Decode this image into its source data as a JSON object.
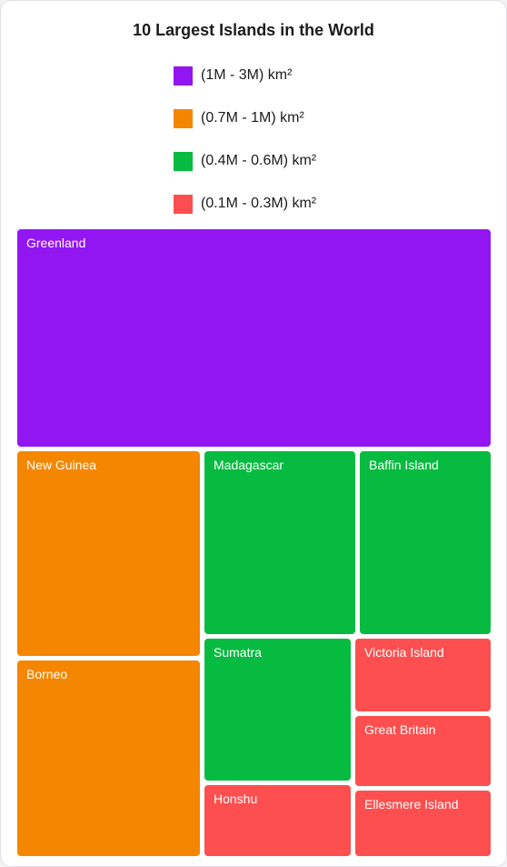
{
  "chart_data": {
    "type": "treemap",
    "title": "10 Largest Islands in the World",
    "legend": [
      {
        "label": "(1M - 3M) km²",
        "color": "#9216f2"
      },
      {
        "label": "(0.7M - 1M) km²",
        "color": "#f58600"
      },
      {
        "label": "(0.4M - 0.6M) km²",
        "color": "#06bb40"
      },
      {
        "label": "(0.1M - 0.3M) km²",
        "color": "#fd4f4f"
      }
    ],
    "items": [
      {
        "name": "Greenland",
        "group": 0
      },
      {
        "name": "New Guinea",
        "group": 1
      },
      {
        "name": "Borneo",
        "group": 1
      },
      {
        "name": "Madagascar",
        "group": 2
      },
      {
        "name": "Baffin Island",
        "group": 2
      },
      {
        "name": "Sumatra",
        "group": 2
      },
      {
        "name": "Victoria Island",
        "group": 3
      },
      {
        "name": "Great Britain",
        "group": 3
      },
      {
        "name": "Honshu",
        "group": 3
      },
      {
        "name": "Ellesmere Island",
        "group": 3
      }
    ]
  }
}
